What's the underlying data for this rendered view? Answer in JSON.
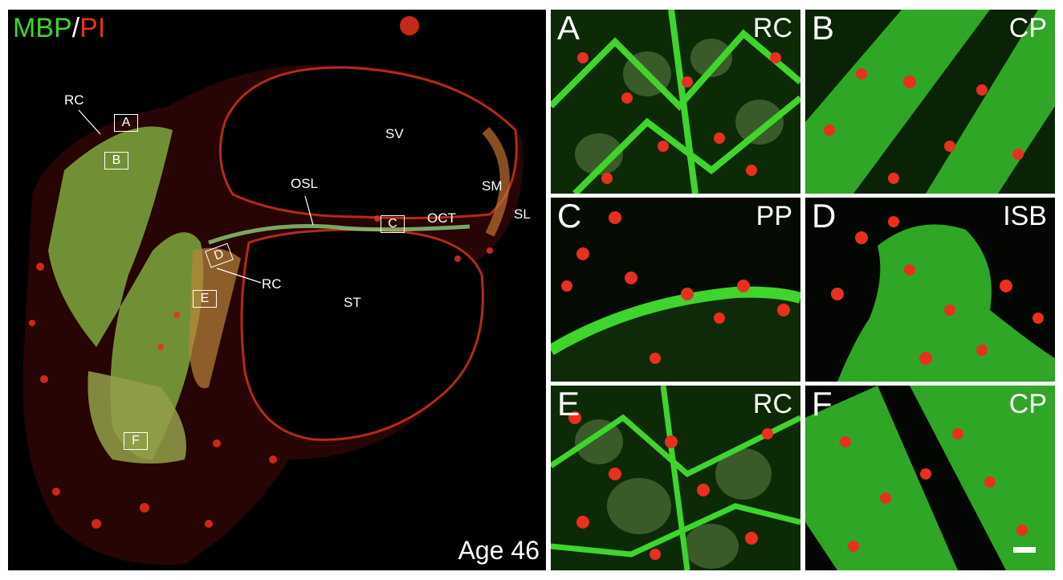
{
  "stain_label": {
    "green": "MBP",
    "separator": "/",
    "red": "PI"
  },
  "age_label": "Age 46",
  "colors": {
    "green": "#3fd52c",
    "red": "#e8301f",
    "background": "#000000",
    "frame": "#ffffff"
  },
  "overview_annotations": {
    "sv": "SV",
    "sm": "SM",
    "sl": "SL",
    "osl": "OSL",
    "oct": "OCT",
    "st": "ST",
    "rc_top": "RC",
    "rc_mid": "RC"
  },
  "inset_boxes": {
    "a": "A",
    "b": "B",
    "c": "C",
    "d": "D",
    "e": "E",
    "f": "F"
  },
  "panels": [
    {
      "letter": "A",
      "region": "RC"
    },
    {
      "letter": "B",
      "region": "CP"
    },
    {
      "letter": "C",
      "region": "PP"
    },
    {
      "letter": "D",
      "region": "ISB"
    },
    {
      "letter": "E",
      "region": "RC"
    },
    {
      "letter": "F",
      "region": "CP"
    }
  ]
}
